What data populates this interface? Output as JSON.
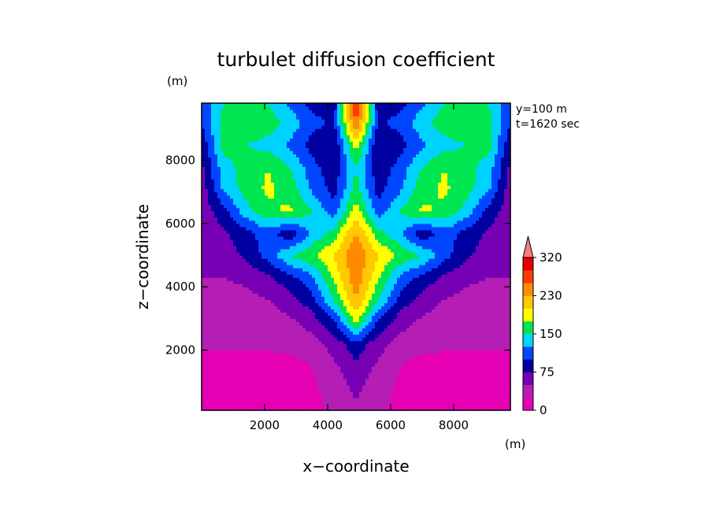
{
  "chart_data": {
    "type": "heatmap",
    "title": "turbulet diffusion coefficient",
    "xlabel": "x−coordinate",
    "ylabel": "z−coordinate",
    "x_unit": "(m)",
    "y_unit": "(m)",
    "annotations": [
      "y=100 m",
      "t=1620 sec"
    ],
    "xlim": [
      0,
      9800
    ],
    "ylim": [
      100,
      9800
    ],
    "x_ticks": [
      2000,
      4000,
      6000,
      8000
    ],
    "y_ticks": [
      2000,
      4000,
      6000,
      8000
    ],
    "x_tick_labels": [
      "2000",
      "4000",
      "6000",
      "8000"
    ],
    "y_tick_labels": [
      "2000",
      "4000",
      "6000",
      "8000"
    ],
    "colorbar": {
      "levels": [
        0,
        25,
        50,
        75,
        100,
        125,
        150,
        175,
        200,
        230,
        260,
        290,
        320
      ],
      "tick_values": [
        0,
        75,
        150,
        230,
        320
      ],
      "tick_labels": [
        "0",
        "75",
        "150",
        "230",
        "320"
      ],
      "colors": [
        "#e600b4",
        "#b41eb4",
        "#7800b4",
        "#0000a0",
        "#0046ff",
        "#00d2ff",
        "#00e650",
        "#ffff00",
        "#ffc800",
        "#ff8c00",
        "#ff3c00",
        "#e60000"
      ],
      "extend_color": "#f08080"
    },
    "field": {
      "x_grid": [
        0,
        700,
        1400,
        2100,
        2800,
        3500,
        4200,
        4900,
        5600,
        6300,
        7000,
        7700,
        8400,
        9100,
        9800
      ],
      "z_grid": [
        100,
        800,
        1500,
        2200,
        2900,
        3600,
        4300,
        5000,
        5700,
        6400,
        7100,
        7800,
        8500,
        9200,
        9800
      ],
      "values": [
        [
          10,
          10,
          10,
          10,
          10,
          18,
          30,
          45,
          30,
          18,
          10,
          10,
          10,
          10,
          10
        ],
        [
          10,
          10,
          10,
          10,
          10,
          20,
          35,
          55,
          35,
          20,
          10,
          10,
          10,
          10,
          10
        ],
        [
          15,
          15,
          15,
          15,
          15,
          25,
          45,
          70,
          45,
          25,
          15,
          15,
          15,
          15,
          15
        ],
        [
          30,
          30,
          30,
          30,
          32,
          40,
          60,
          90,
          60,
          40,
          32,
          30,
          30,
          30,
          30
        ],
        [
          30,
          30,
          30,
          35,
          45,
          60,
          95,
          180,
          95,
          60,
          45,
          35,
          30,
          30,
          30
        ],
        [
          40,
          40,
          42,
          50,
          65,
          90,
          150,
          230,
          150,
          90,
          65,
          50,
          42,
          40,
          40
        ],
        [
          50,
          50,
          55,
          70,
          90,
          120,
          180,
          250,
          180,
          120,
          90,
          70,
          55,
          50,
          50
        ],
        [
          55,
          60,
          80,
          110,
          150,
          170,
          200,
          260,
          200,
          170,
          150,
          110,
          80,
          60,
          55
        ],
        [
          60,
          70,
          90,
          115,
          80,
          130,
          160,
          230,
          160,
          130,
          80,
          115,
          90,
          70,
          60
        ],
        [
          60,
          90,
          140,
          170,
          180,
          150,
          110,
          190,
          110,
          150,
          180,
          170,
          140,
          90,
          60
        ],
        [
          60,
          130,
          160,
          180,
          165,
          120,
          90,
          160,
          90,
          120,
          165,
          180,
          160,
          130,
          60
        ],
        [
          70,
          140,
          160,
          175,
          150,
          110,
          80,
          150,
          80,
          110,
          150,
          175,
          160,
          140,
          70
        ],
        [
          80,
          160,
          150,
          140,
          120,
          90,
          75,
          190,
          75,
          90,
          120,
          140,
          150,
          160,
          80
        ],
        [
          100,
          160,
          175,
          165,
          140,
          110,
          95,
          260,
          95,
          110,
          140,
          165,
          175,
          160,
          100
        ],
        [
          110,
          150,
          165,
          150,
          120,
          90,
          80,
          300,
          80,
          90,
          120,
          150,
          165,
          150,
          110
        ]
      ]
    }
  }
}
